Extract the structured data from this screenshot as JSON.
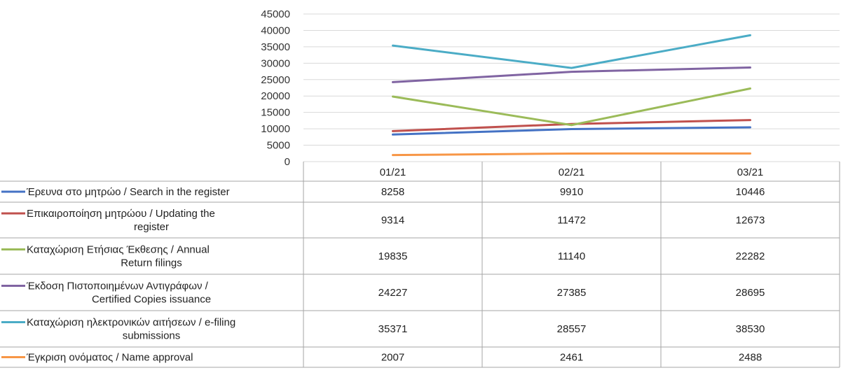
{
  "chart_data": {
    "type": "line",
    "categories": [
      "01/21",
      "02/21",
      "03/21"
    ],
    "ylim": [
      0,
      45000
    ],
    "yticks": [
      "0",
      "5000",
      "10000",
      "15000",
      "20000",
      "25000",
      "30000",
      "35000",
      "40000",
      "45000"
    ],
    "grid": true,
    "legend": "data-table-left",
    "series": [
      {
        "name_lines": [
          "Έρευνα στο μητρώο / Search in the register"
        ],
        "color": "#4472C4",
        "values": [
          8258,
          9910,
          10446
        ],
        "display": [
          "8258",
          "9910",
          "10446"
        ]
      },
      {
        "name_lines": [
          "Επικαιροποίηση μητρώου / Updating the",
          "register"
        ],
        "color": "#C0504D",
        "values": [
          9314,
          11472,
          12673
        ],
        "display": [
          "9314",
          "11472",
          "12673"
        ]
      },
      {
        "name_lines": [
          "Καταχώριση Ετήσιας Έκθεσης / Annual",
          "Return filings"
        ],
        "color": "#9BBB59",
        "values": [
          19835,
          11140,
          22282
        ],
        "display": [
          "19835",
          "11140",
          "22282"
        ]
      },
      {
        "name_lines": [
          "Έκδοση Πιστοποιημένων Αντιγράφων /",
          "Certified Copies issuance"
        ],
        "color": "#8064A2",
        "values": [
          24227,
          27385,
          28695
        ],
        "display": [
          "24227",
          "27385",
          "28695"
        ]
      },
      {
        "name_lines": [
          "Καταχώριση ηλεκτρονικών αιτήσεων / e-filing",
          "submissions"
        ],
        "color": "#4BACC6",
        "values": [
          35371,
          28557,
          38530
        ],
        "display": [
          "35371",
          "28557",
          "38530"
        ]
      },
      {
        "name_lines": [
          "Έγκριση ονόματος / Name approval"
        ],
        "color": "#F79646",
        "values": [
          2007,
          2461,
          2488
        ],
        "display": [
          "2007",
          "2461",
          "2488"
        ]
      }
    ]
  }
}
